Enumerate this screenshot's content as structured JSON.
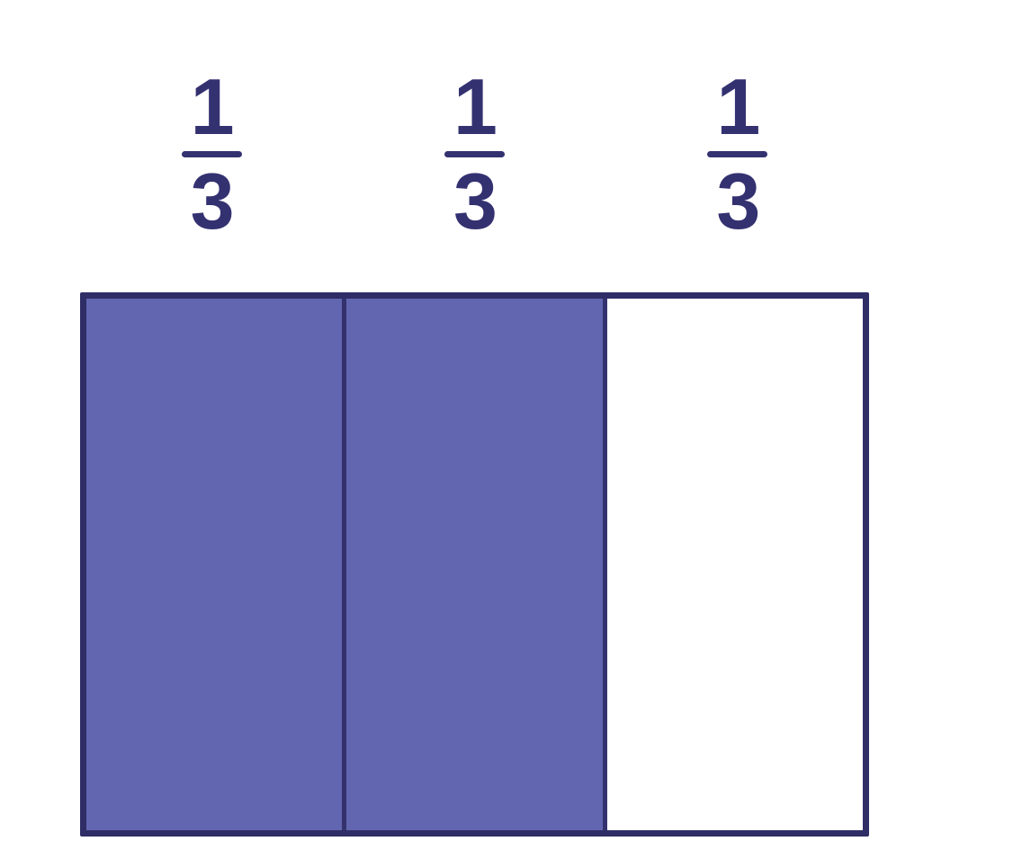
{
  "colors": {
    "background": "#ffffff",
    "shaded_fill": "#6266b0",
    "outline": "#2f2d66",
    "divider": "#34326e",
    "label_text": "#343171"
  },
  "fractions": [
    {
      "numerator": "1",
      "denominator": "3"
    },
    {
      "numerator": "1",
      "denominator": "3"
    },
    {
      "numerator": "1",
      "denominator": "3"
    }
  ],
  "model": {
    "type": "fraction-bar",
    "total_parts": 3,
    "shaded_parts": 2,
    "cells": [
      {
        "label": "1/3",
        "shaded": true
      },
      {
        "label": "1/3",
        "shaded": true
      },
      {
        "label": "1/3",
        "shaded": false
      }
    ]
  }
}
